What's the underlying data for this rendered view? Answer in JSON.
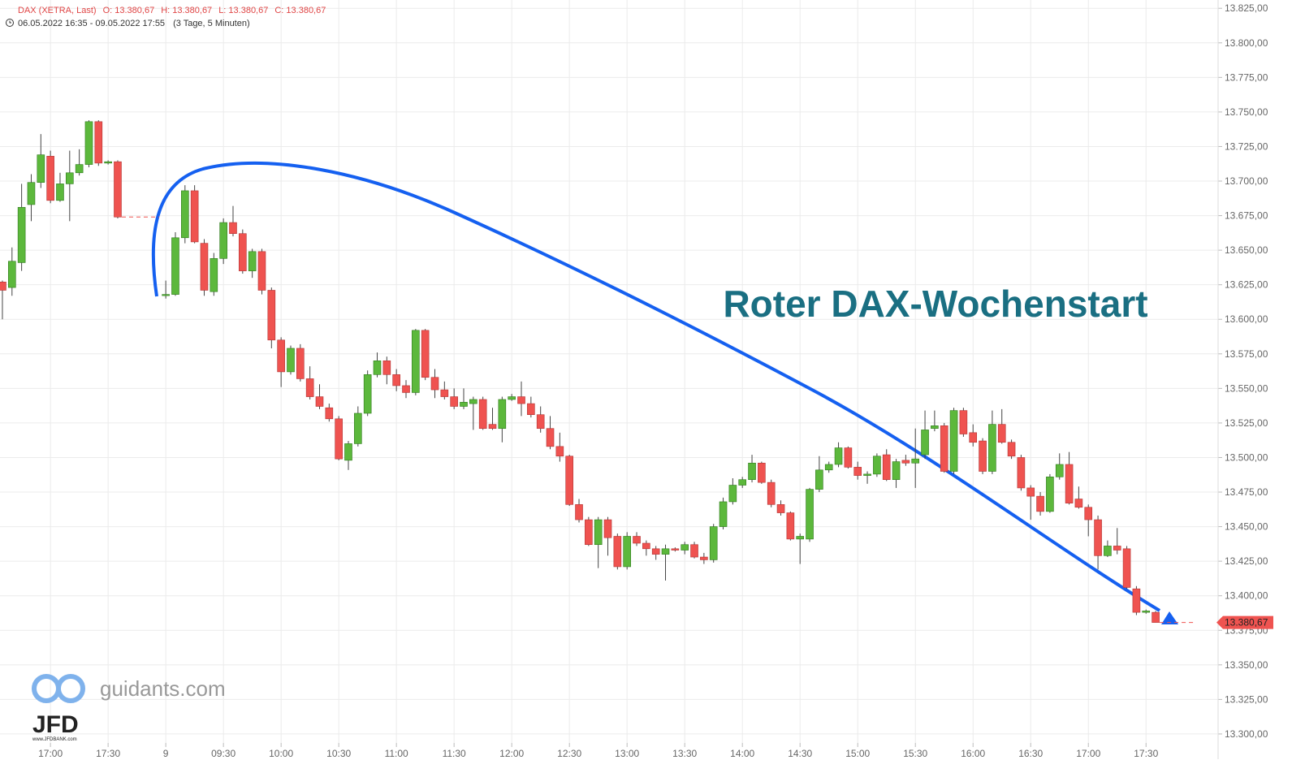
{
  "header": {
    "instrument": "DAX (XETRA, Last)",
    "open": "O: 13.380,67",
    "high": "H: 13.380,67",
    "low": "L: 13.380,67",
    "close": "C: 13.380,67",
    "range": "06.05.2022 16:35 - 09.05.2022 17:55",
    "span": "(3 Tage, 5 Minuten)"
  },
  "annotation": "Roter DAX-Wochenstart",
  "logo": {
    "site": "guidants.com",
    "brand": "JFD",
    "url": "www.JFDBANK.com"
  },
  "chart_data": {
    "type": "candlestick",
    "x": [
      0,
      1,
      2,
      3,
      4,
      5,
      6,
      7,
      8,
      9,
      10,
      11,
      12,
      17,
      18,
      19,
      20,
      21,
      22,
      23,
      24,
      25,
      26,
      27,
      28,
      29,
      30,
      31,
      32,
      33,
      34,
      35,
      36,
      37,
      38,
      39,
      40,
      41,
      42,
      43,
      44,
      45,
      46,
      47,
      48,
      49,
      50,
      51,
      52,
      53,
      54,
      55,
      56,
      57,
      58,
      59,
      60,
      61,
      62,
      63,
      64,
      65,
      66,
      67,
      68,
      69,
      70,
      71,
      72,
      73,
      74,
      75,
      76,
      77,
      78,
      79,
      80,
      81,
      82,
      83,
      84,
      85,
      86,
      87,
      88,
      89,
      90,
      91,
      92,
      93,
      94,
      95,
      96,
      97,
      98,
      99,
      100,
      101,
      102,
      103,
      104,
      105,
      106,
      107,
      108,
      109,
      110,
      111,
      112,
      113,
      114,
      115,
      116,
      117,
      118,
      119,
      120
    ],
    "open": [
      13627,
      13623,
      13641,
      13683,
      13699,
      13718,
      13686,
      13698,
      13706,
      13712,
      13743,
      13713,
      13714,
      13618,
      13618,
      13659,
      13693,
      13655,
      13620,
      13644,
      13670,
      13662,
      13635,
      13649,
      13621,
      13585,
      13562,
      13579,
      13557,
      13544,
      13536,
      13528,
      13498,
      13510,
      13532,
      13560,
      13570,
      13560,
      13552,
      13547,
      13592,
      13558,
      13549,
      13544,
      13537,
      13539,
      13542,
      13524,
      13521,
      13542,
      13544,
      13539,
      13531,
      13521,
      13508,
      13501,
      13466,
      13455,
      13437,
      13455,
      13443,
      13421,
      13443,
      13438,
      13434,
      13430,
      13434,
      13433,
      13437,
      13428,
      13426,
      13450,
      13468,
      13480,
      13484,
      13496,
      13482,
      13466,
      13460,
      13441,
      13441,
      13477,
      13491,
      13495,
      13507,
      13493,
      13487,
      13488,
      13502,
      13484,
      13498,
      13496,
      13502,
      13521,
      13523,
      13490,
      13534,
      13518,
      13512,
      13490,
      13524,
      13511,
      13500,
      13478,
      13472,
      13461,
      13486,
      13495,
      13470,
      13464,
      13455,
      13429,
      13436,
      13434,
      13405,
      13388,
      13388
    ],
    "high": [
      13628,
      13652,
      13698,
      13705,
      13734,
      13722,
      13706,
      13722,
      13723,
      13744,
      13744,
      13715,
      13715,
      13628,
      13663,
      13697,
      13697,
      13658,
      13648,
      13673,
      13682,
      13665,
      13651,
      13651,
      13623,
      13587,
      13581,
      13582,
      13566,
      13553,
      13539,
      13530,
      13512,
      13537,
      13563,
      13576,
      13573,
      13564,
      13556,
      13593,
      13593,
      13564,
      13555,
      13550,
      13550,
      13544,
      13544,
      13536,
      13544,
      13546,
      13555,
      13544,
      13537,
      13530,
      13518,
      13502,
      13470,
      13457,
      13457,
      13457,
      13445,
      13446,
      13446,
      13440,
      13436,
      13437,
      13435,
      13439,
      13439,
      13431,
      13452,
      13471,
      13485,
      13486,
      13502,
      13497,
      13484,
      13469,
      13461,
      13445,
      13478,
      13501,
      13497,
      13511,
      13508,
      13497,
      13490,
      13503,
      13506,
      13499,
      13502,
      13521,
      13534,
      13534,
      13525,
      13536,
      13536,
      13524,
      13514,
      13534,
      13535,
      13513,
      13502,
      13480,
      13475,
      13488,
      13503,
      13504,
      13479,
      13466,
      13458,
      13440,
      13449,
      13436,
      13407,
      13390,
      13389
    ],
    "low": [
      13600,
      13617,
      13635,
      13671,
      13695,
      13684,
      13685,
      13671,
      13704,
      13710,
      13711,
      13712,
      13673,
      13615,
      13617,
      13655,
      13655,
      13617,
      13617,
      13640,
      13660,
      13633,
      13630,
      13618,
      13579,
      13551,
      13560,
      13555,
      13542,
      13535,
      13526,
      13498,
      13491,
      13508,
      13530,
      13558,
      13553,
      13548,
      13543,
      13545,
      13556,
      13543,
      13542,
      13535,
      13535,
      13520,
      13520,
      13520,
      13511,
      13541,
      13530,
      13529,
      13518,
      13506,
      13497,
      13465,
      13453,
      13436,
      13420,
      13429,
      13419,
      13419,
      13436,
      13429,
      13426,
      13411,
      13432,
      13430,
      13427,
      13423,
      13424,
      13448,
      13466,
      13478,
      13482,
      13481,
      13464,
      13458,
      13440,
      13423,
      13439,
      13475,
      13489,
      13493,
      13492,
      13484,
      13481,
      13486,
      13483,
      13478,
      13494,
      13478,
      13499,
      13519,
      13489,
      13488,
      13515,
      13508,
      13488,
      13488,
      13510,
      13499,
      13476,
      13455,
      13458,
      13460,
      13484,
      13466,
      13463,
      13443,
      13419,
      13428,
      13430,
      13405,
      13386,
      13387,
      13380.67
    ],
    "close": [
      13621,
      13642,
      13681,
      13699,
      13719,
      13686,
      13698,
      13706,
      13712,
      13743,
      13713,
      13714,
      13674,
      13618,
      13659,
      13693,
      13656,
      13621,
      13644,
      13670,
      13662,
      13635,
      13649,
      13621,
      13585,
      13562,
      13579,
      13557,
      13544,
      13537,
      13528,
      13499,
      13510,
      13532,
      13560,
      13570,
      13560,
      13552,
      13547,
      13592,
      13558,
      13549,
      13544,
      13537,
      13540,
      13542,
      13521,
      13521,
      13542,
      13544,
      13539,
      13531,
      13521,
      13508,
      13501,
      13466,
      13455,
      13437,
      13455,
      13442,
      13421,
      13443,
      13438,
      13434,
      13430,
      13434,
      13433,
      13437,
      13428,
      13426,
      13450,
      13468,
      13480,
      13484,
      13496,
      13482,
      13466,
      13460,
      13441,
      13443,
      13477,
      13491,
      13495,
      13507,
      13493,
      13487,
      13488,
      13501,
      13484,
      13497,
      13496,
      13499,
      13520,
      13523,
      13490,
      13534,
      13517,
      13511,
      13490,
      13524,
      13511,
      13501,
      13478,
      13472,
      13461,
      13486,
      13495,
      13467,
      13464,
      13455,
      13429,
      13436,
      13433,
      13406,
      13388,
      13389,
      13380.67
    ],
    "up_color": "#5cb83c",
    "down_color": "#ef5350",
    "annotation_color": "#1a6f82",
    "curve_color": "#1560f0",
    "previous_close": 13674,
    "last_price": {
      "value": 13380.67,
      "label": "13.380,67"
    },
    "xlim": [
      -0.25,
      126.5
    ],
    "xticks": [
      {
        "value": 5,
        "label": "17:00"
      },
      {
        "value": 11,
        "label": "17:30"
      },
      {
        "value": 17,
        "label": "9"
      },
      {
        "value": 23,
        "label": "09:30"
      },
      {
        "value": 29,
        "label": "10:00"
      },
      {
        "value": 35,
        "label": "10:30"
      },
      {
        "value": 41,
        "label": "11:00"
      },
      {
        "value": 47,
        "label": "11:30"
      },
      {
        "value": 53,
        "label": "12:00"
      },
      {
        "value": 59,
        "label": "12:30"
      },
      {
        "value": 65,
        "label": "13:00"
      },
      {
        "value": 71,
        "label": "13:30"
      },
      {
        "value": 77,
        "label": "14:00"
      },
      {
        "value": 83,
        "label": "14:30"
      },
      {
        "value": 89,
        "label": "15:00"
      },
      {
        "value": 95,
        "label": "15:30"
      },
      {
        "value": 101,
        "label": "16:00"
      },
      {
        "value": 107,
        "label": "16:30"
      },
      {
        "value": 113,
        "label": "17:00"
      },
      {
        "value": 119,
        "label": "17:30"
      }
    ],
    "ylim": [
      13293.5,
      13831
    ],
    "yticks": [
      {
        "value": 13300,
        "label": "13.300,00"
      },
      {
        "value": 13325,
        "label": "13.325,00"
      },
      {
        "value": 13350,
        "label": "13.350,00"
      },
      {
        "value": 13375,
        "label": "13.375,00"
      },
      {
        "value": 13400,
        "label": "13.400,00"
      },
      {
        "value": 13425,
        "label": "13.425,00"
      },
      {
        "value": 13450,
        "label": "13.450,00"
      },
      {
        "value": 13475,
        "label": "13.475,00"
      },
      {
        "value": 13500,
        "label": "13.500,00"
      },
      {
        "value": 13525,
        "label": "13.525,00"
      },
      {
        "value": 13550,
        "label": "13.550,00"
      },
      {
        "value": 13575,
        "label": "13.575,00"
      },
      {
        "value": 13600,
        "label": "13.600,00"
      },
      {
        "value": 13625,
        "label": "13.625,00"
      },
      {
        "value": 13650,
        "label": "13.650,00"
      },
      {
        "value": 13675,
        "label": "13.675,00"
      },
      {
        "value": 13700,
        "label": "13.700,00"
      },
      {
        "value": 13725,
        "label": "13.725,00"
      },
      {
        "value": 13750,
        "label": "13.750,00"
      },
      {
        "value": 13775,
        "label": "13.775,00"
      },
      {
        "value": 13800,
        "label": "13.800,00"
      },
      {
        "value": 13825,
        "label": "13.825,00"
      }
    ],
    "grid": true
  }
}
